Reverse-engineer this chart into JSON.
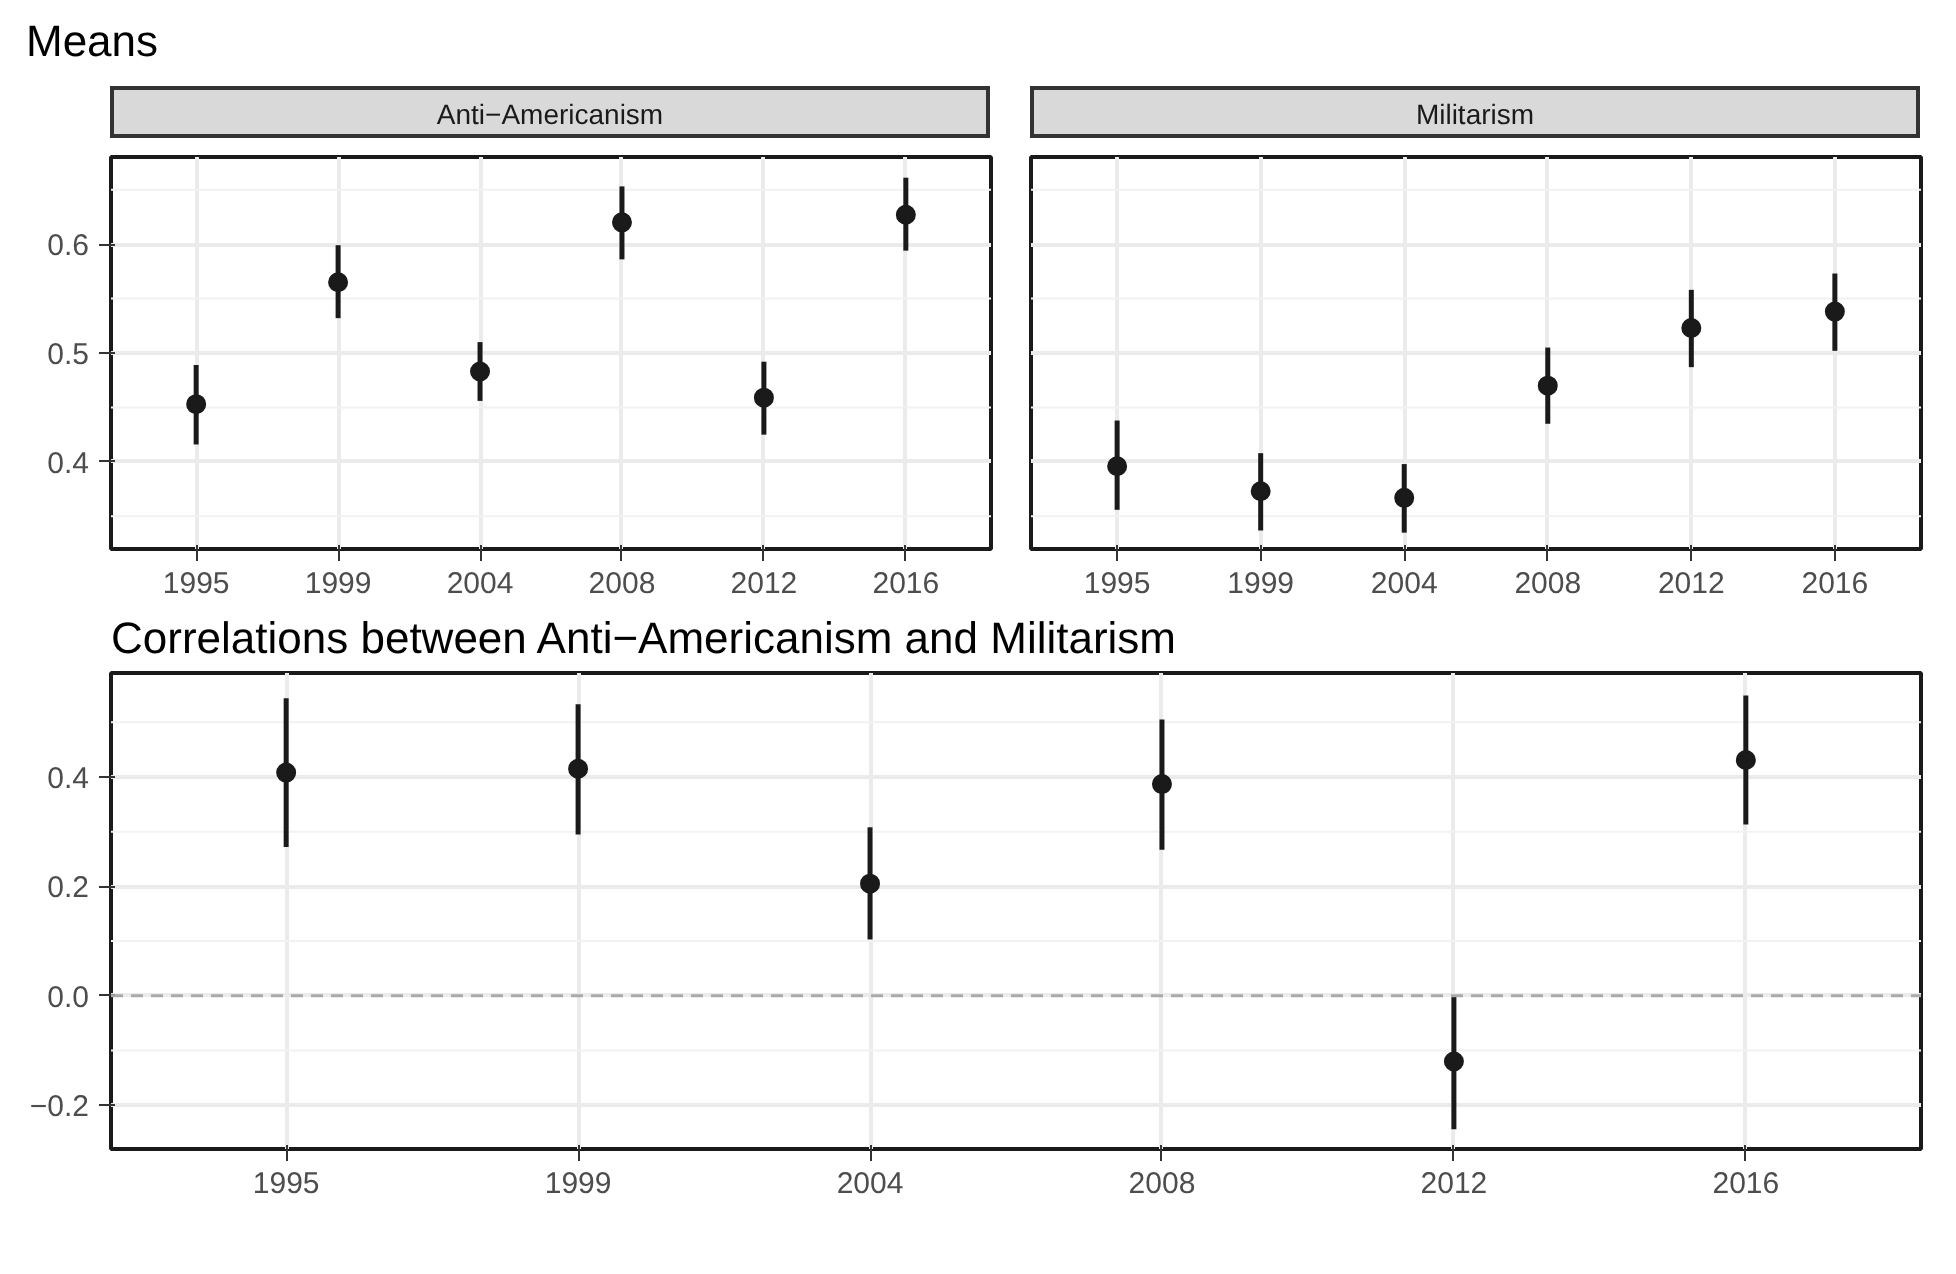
{
  "chart_data": [
    {
      "type": "scatter",
      "title": "Means",
      "subtitle": "Anti−Americanism",
      "categories": [
        "1995",
        "1999",
        "2004",
        "2008",
        "2012",
        "2016"
      ],
      "series": [
        {
          "color": "#1a1a1a",
          "values": [
            0.453,
            0.565,
            0.483,
            0.62,
            0.459,
            0.627
          ],
          "errors": [
            [
              0.416,
              0.489
            ],
            [
              0.532,
              0.599
            ],
            [
              0.456,
              0.51
            ],
            [
              0.586,
              0.653
            ],
            [
              0.425,
              0.492
            ],
            [
              0.594,
              0.661
            ]
          ]
        }
      ],
      "ylim": [
        0.32,
        0.68
      ],
      "yticks": [
        0.4,
        0.5,
        0.6
      ],
      "grid": true,
      "marker": "circle"
    },
    {
      "type": "scatter",
      "subtitle": "Militarism",
      "categories": [
        "1995",
        "1999",
        "2004",
        "2008",
        "2012",
        "2016"
      ],
      "series": [
        {
          "color": "#1a1a1a",
          "values": [
            0.396,
            0.373,
            0.367,
            0.47,
            0.523,
            0.538
          ],
          "errors": [
            [
              0.356,
              0.438
            ],
            [
              0.337,
              0.408
            ],
            [
              0.335,
              0.398
            ],
            [
              0.435,
              0.505
            ],
            [
              0.487,
              0.558
            ],
            [
              0.502,
              0.573
            ]
          ]
        }
      ],
      "ylim": [
        0.32,
        0.68
      ],
      "yticks": [
        0.4,
        0.5,
        0.6
      ],
      "grid": true,
      "marker": "circle",
      "tick_labels": "x"
    },
    {
      "type": "scatter",
      "title": "Correlations between Anti−Americanism and Militarism",
      "categories": [
        "1995",
        "1999",
        "2004",
        "2008",
        "2012",
        "2016"
      ],
      "series": [
        {
          "color": "#1a1a1a",
          "values": [
            0.408,
            0.415,
            0.205,
            0.387,
            -0.12,
            0.431
          ],
          "errors": [
            [
              0.272,
              0.544
            ],
            [
              0.295,
              0.533
            ],
            [
              0.103,
              0.308
            ],
            [
              0.267,
              0.505
            ],
            [
              -0.244,
              0.0
            ],
            [
              0.313,
              0.549
            ]
          ]
        }
      ],
      "ylim": [
        -0.28,
        0.59
      ],
      "yticks": [
        {
          "value": -0.2,
          "label": "−0.2"
        },
        {
          "value": 0,
          "label": "0.0"
        },
        {
          "value": 0.2,
          "label": "0.2"
        },
        {
          "value": 0.4,
          "label": "0.4"
        }
      ],
      "ref_lines": [
        {
          "axis": "y",
          "value": 0,
          "color": "#aaaaaa",
          "line_style": "dashed"
        }
      ],
      "grid": true,
      "marker": "circle"
    }
  ]
}
